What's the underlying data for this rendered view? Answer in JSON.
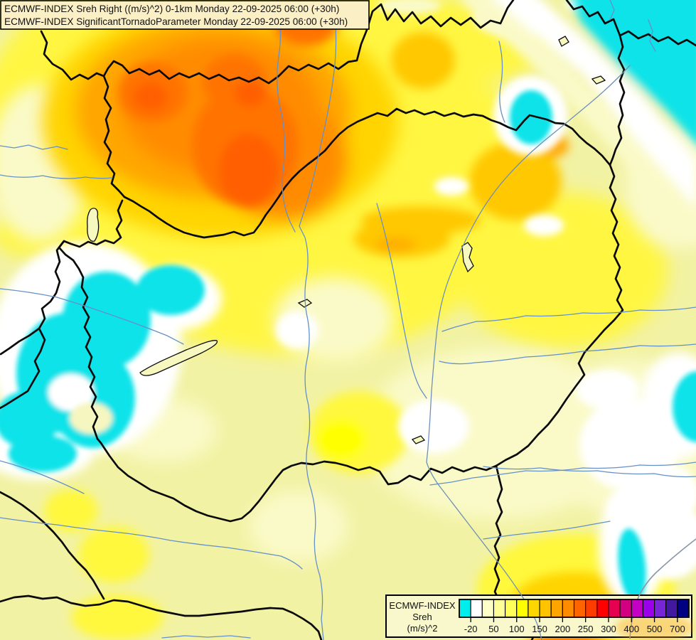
{
  "title_box": {
    "line1": "ECMWF-INDEX Sreh Right ((m/s)^2) 0-1km Monday 22-09-2025 06:00 (+30h)",
    "line2": "ECMWF-INDEX SignificantTornadoParameter Monday 22-09-2025 06:00 (+30h)"
  },
  "legend": {
    "title_line1": "ECMWF-INDEX",
    "title_line2": "Sreh",
    "title_line3": "(m/s)^2",
    "swatch_colors": [
      "#00EDED",
      "#FFFFFF",
      "#FFFFC8",
      "#FFFF96",
      "#FFFF5A",
      "#FFFF00",
      "#FFD700",
      "#FFC300",
      "#FFA500",
      "#FF8C00",
      "#FF6400",
      "#FF3C00",
      "#FF0000",
      "#E60050",
      "#D20080",
      "#C400C4",
      "#9B00EB",
      "#7825D7",
      "#41189F",
      "#000082"
    ],
    "ticks": [
      {
        "boundary_index": 1,
        "value": "-20"
      },
      {
        "boundary_index": 3,
        "value": "50"
      },
      {
        "boundary_index": 5,
        "value": "100"
      },
      {
        "boundary_index": 7,
        "value": "150"
      },
      {
        "boundary_index": 9,
        "value": "200"
      },
      {
        "boundary_index": 11,
        "value": "250"
      },
      {
        "boundary_index": 13,
        "value": "300"
      },
      {
        "boundary_index": 15,
        "value": "400"
      },
      {
        "boundary_index": 17,
        "value": "500"
      },
      {
        "boundary_index": 19,
        "value": "700"
      }
    ]
  },
  "map_palette": {
    "base": "#F2F2A4",
    "negative_cyan": "#0EE3E9",
    "white_band": "#FFFFFF",
    "cream": "#FAFAC9",
    "yellow": "#FFF642",
    "gold": "#FFD400",
    "orange": "#FFA606",
    "deep_orange": "#FF7300",
    "core_orange": "#FF5E00",
    "border": "#0A0A0A",
    "river": "#6590C8"
  }
}
